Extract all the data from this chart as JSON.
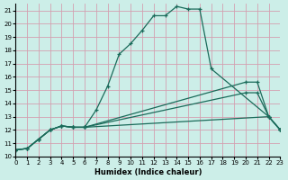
{
  "xlabel": "Humidex (Indice chaleur)",
  "background_color": "#cceee8",
  "grid_color": "#d4a0b0",
  "line_color": "#1a6b5a",
  "xlim": [
    0,
    23
  ],
  "ylim": [
    10,
    21.5
  ],
  "xticks": [
    0,
    1,
    2,
    3,
    4,
    5,
    6,
    7,
    8,
    9,
    10,
    11,
    12,
    13,
    14,
    15,
    16,
    17,
    18,
    19,
    20,
    21,
    22,
    23
  ],
  "yticks": [
    10,
    11,
    12,
    13,
    14,
    15,
    16,
    17,
    18,
    19,
    20,
    21
  ],
  "line1_x": [
    0,
    1,
    2,
    3,
    4,
    5,
    6,
    7,
    8,
    9,
    10,
    11,
    12,
    13,
    14,
    15,
    16,
    17,
    22,
    23
  ],
  "line1_y": [
    10.5,
    10.6,
    11.3,
    12.0,
    12.3,
    12.2,
    12.2,
    13.5,
    15.3,
    17.7,
    18.5,
    19.5,
    20.6,
    20.6,
    21.3,
    21.1,
    21.1,
    16.6,
    13.0,
    12.0
  ],
  "line2_x": [
    0,
    1,
    2,
    3,
    4,
    5,
    6,
    20,
    21,
    22,
    23
  ],
  "line2_y": [
    10.5,
    10.6,
    11.3,
    12.0,
    12.3,
    12.2,
    12.2,
    15.6,
    15.6,
    13.0,
    12.0
  ],
  "line3_x": [
    0,
    1,
    2,
    3,
    4,
    5,
    6,
    20,
    21,
    22,
    23
  ],
  "line3_y": [
    10.5,
    10.6,
    11.3,
    12.0,
    12.3,
    12.2,
    12.2,
    14.8,
    14.8,
    13.0,
    12.0
  ],
  "line4_x": [
    0,
    1,
    2,
    3,
    4,
    5,
    6,
    22,
    23
  ],
  "line4_y": [
    10.5,
    10.6,
    11.3,
    12.0,
    12.3,
    12.2,
    12.2,
    13.0,
    12.0
  ],
  "tick_fontsize": 5.0,
  "xlabel_fontsize": 6.0
}
